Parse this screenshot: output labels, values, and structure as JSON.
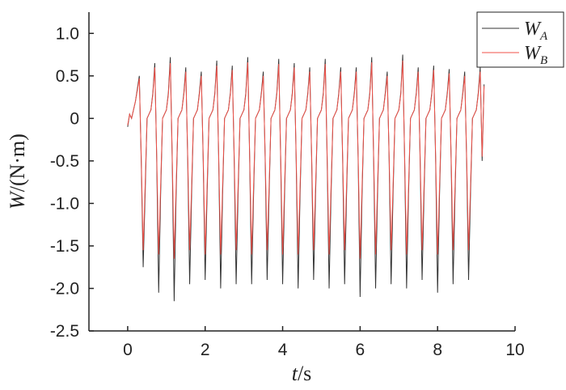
{
  "chart_data": {
    "type": "line",
    "x_label": "t/s",
    "y_label": "W/(N·m)",
    "xlim": [
      -1,
      10
    ],
    "xticks": [
      0,
      2,
      4,
      6,
      8,
      10
    ],
    "ylim": [
      -2.5,
      1.25
    ],
    "yticks": [
      {
        "value": 1,
        "label": "1.0"
      },
      0.5,
      0,
      -0.5,
      {
        "value": -1,
        "label": "-1.0"
      },
      -1.5,
      {
        "value": -2,
        "label": "-2.0"
      },
      -2.5
    ],
    "legend": "top-right",
    "x": [
      0,
      0.05,
      0.1,
      0.15,
      0.2,
      0.25,
      0.3,
      0.35,
      0.4,
      0.45,
      0.5,
      0.55,
      0.6,
      0.65,
      0.7,
      0.75,
      0.8,
      0.85,
      0.9,
      0.95,
      1,
      1.05,
      1.1,
      1.15,
      1.2,
      1.25,
      1.3,
      1.35,
      1.4,
      1.45,
      1.5,
      1.55,
      1.6,
      1.65,
      1.7,
      1.75,
      1.8,
      1.85,
      1.9,
      1.95,
      2,
      2.05,
      2.1,
      2.15,
      2.2,
      2.25,
      2.3,
      2.35,
      2.4,
      2.45,
      2.5,
      2.55,
      2.6,
      2.65,
      2.7,
      2.75,
      2.8,
      2.85,
      2.9,
      2.95,
      3,
      3.05,
      3.1,
      3.15,
      3.2,
      3.25,
      3.3,
      3.35,
      3.4,
      3.45,
      3.5,
      3.55,
      3.6,
      3.65,
      3.7,
      3.75,
      3.8,
      3.85,
      3.9,
      3.95,
      4,
      4.05,
      4.1,
      4.15,
      4.2,
      4.25,
      4.3,
      4.35,
      4.4,
      4.45,
      4.5,
      4.55,
      4.6,
      4.65,
      4.7,
      4.75,
      4.8,
      4.85,
      4.9,
      4.95,
      5,
      5.05,
      5.1,
      5.15,
      5.2,
      5.25,
      5.3,
      5.35,
      5.4,
      5.45,
      5.5,
      5.55,
      5.6,
      5.65,
      5.7,
      5.75,
      5.8,
      5.85,
      5.9,
      5.95,
      6,
      6.05,
      6.1,
      6.15,
      6.2,
      6.25,
      6.3,
      6.35,
      6.4,
      6.45,
      6.5,
      6.55,
      6.6,
      6.65,
      6.7,
      6.75,
      6.8,
      6.85,
      6.9,
      6.95,
      7,
      7.05,
      7.1,
      7.15,
      7.2,
      7.25,
      7.3,
      7.35,
      7.4,
      7.45,
      7.5,
      7.55,
      7.6,
      7.65,
      7.7,
      7.75,
      7.8,
      7.85,
      7.9,
      7.95,
      8,
      8.05,
      8.1,
      8.15,
      8.2,
      8.25,
      8.3,
      8.35,
      8.4,
      8.45,
      8.5,
      8.55,
      8.6,
      8.65,
      8.7,
      8.75,
      8.8,
      8.85,
      8.9,
      8.95,
      9,
      9.05,
      9.1,
      9.15,
      9.2
    ],
    "series": [
      {
        "name": "WA",
        "color": "#333333",
        "values": [
          -0.1,
          0.05,
          0,
          0.1,
          0.2,
          0.35,
          0.5,
          -0.5,
          -1.75,
          -0.9,
          0,
          0.05,
          0.1,
          0.3,
          0.65,
          -0.5,
          -2.05,
          -0.9,
          0,
          0.05,
          0.1,
          0.3,
          0.72,
          -0.5,
          -2.15,
          -0.9,
          0,
          0.05,
          0.1,
          0.3,
          0.6,
          -0.5,
          -1.95,
          -0.9,
          0,
          0.05,
          0.1,
          0.3,
          0.55,
          -0.5,
          -1.9,
          -0.9,
          0,
          0.05,
          0.1,
          0.3,
          0.68,
          -0.5,
          -2,
          -0.9,
          0,
          0.05,
          0.1,
          0.3,
          0.62,
          -0.5,
          -1.95,
          -0.9,
          0,
          0.05,
          0.1,
          0.3,
          0.72,
          -0.5,
          -1.95,
          -0.9,
          0,
          0.05,
          0.1,
          0.3,
          0.55,
          -0.5,
          -1.9,
          -0.9,
          0,
          0.05,
          0.1,
          0.3,
          0.7,
          -0.5,
          -1.95,
          -0.9,
          0,
          0.05,
          0.1,
          0.3,
          0.65,
          -0.5,
          -2,
          -0.9,
          0,
          0.05,
          0.1,
          0.3,
          0.6,
          -0.5,
          -1.9,
          -0.9,
          0,
          0.05,
          0.1,
          0.3,
          0.7,
          -0.5,
          -2,
          -0.9,
          0,
          0.05,
          0.1,
          0.3,
          0.6,
          -0.5,
          -1.95,
          -0.9,
          0,
          0.05,
          0.1,
          0.3,
          0.6,
          -0.5,
          -2.1,
          -0.9,
          0,
          0.05,
          0.1,
          0.3,
          0.72,
          -0.5,
          -2,
          -0.9,
          0,
          0.05,
          0.1,
          0.3,
          0.55,
          -0.5,
          -1.95,
          -0.9,
          0,
          0.05,
          0.1,
          0.3,
          0.75,
          -0.5,
          -2,
          -0.9,
          0,
          0.05,
          0.1,
          0.3,
          0.6,
          -0.5,
          -1.9,
          -0.9,
          0,
          0.05,
          0.1,
          0.3,
          0.62,
          -0.5,
          -2.05,
          -0.9,
          0,
          0.05,
          0.1,
          0.3,
          0.58,
          -0.5,
          -1.95,
          -0.9,
          0,
          0.05,
          0.1,
          0.3,
          0.55,
          -0.5,
          -1.9,
          -0.9,
          0,
          0.05,
          0.1,
          0.3,
          0.6,
          -0.5,
          0.4
        ]
      },
      {
        "name": "WB",
        "color": "#f0524a",
        "values": [
          -0.08,
          0.05,
          0,
          0.1,
          0.2,
          0.33,
          0.47,
          -0.45,
          -1.55,
          -0.8,
          0,
          0.05,
          0.1,
          0.28,
          0.6,
          -0.45,
          -1.6,
          -0.8,
          0,
          0.05,
          0.1,
          0.28,
          0.65,
          -0.45,
          -1.65,
          -0.8,
          0,
          0.05,
          0.1,
          0.28,
          0.55,
          -0.45,
          -1.55,
          -0.8,
          0,
          0.05,
          0.1,
          0.28,
          0.5,
          -0.45,
          -1.6,
          -0.8,
          0,
          0.05,
          0.1,
          0.28,
          0.62,
          -0.45,
          -1.6,
          -0.8,
          0,
          0.05,
          0.1,
          0.28,
          0.57,
          -0.45,
          -1.55,
          -0.8,
          0,
          0.05,
          0.1,
          0.28,
          0.66,
          -0.45,
          -1.6,
          -0.8,
          0,
          0.05,
          0.1,
          0.28,
          0.5,
          -0.45,
          -1.55,
          -0.8,
          0,
          0.05,
          0.1,
          0.28,
          0.64,
          -0.45,
          -1.6,
          -0.8,
          0,
          0.05,
          0.1,
          0.28,
          0.6,
          -0.45,
          -1.6,
          -0.8,
          0,
          0.05,
          0.1,
          0.28,
          0.55,
          -0.45,
          -1.55,
          -0.8,
          0,
          0.05,
          0.1,
          0.28,
          0.64,
          -0.45,
          -1.6,
          -0.8,
          0,
          0.05,
          0.1,
          0.28,
          0.55,
          -0.45,
          -1.55,
          -0.8,
          0,
          0.05,
          0.1,
          0.28,
          0.55,
          -0.45,
          -1.65,
          -0.8,
          0,
          0.05,
          0.1,
          0.28,
          0.66,
          -0.45,
          -1.6,
          -0.8,
          0,
          0.05,
          0.1,
          0.28,
          0.5,
          -0.45,
          -1.55,
          -0.8,
          0,
          0.05,
          0.1,
          0.28,
          0.68,
          -0.45,
          -1.6,
          -0.8,
          0,
          0.05,
          0.1,
          0.28,
          0.55,
          -0.45,
          -1.55,
          -0.8,
          0,
          0.05,
          0.1,
          0.28,
          0.57,
          -0.45,
          -1.6,
          -0.8,
          0,
          0.05,
          0.1,
          0.28,
          0.53,
          -0.45,
          -1.55,
          -0.8,
          0,
          0.05,
          0.1,
          0.28,
          0.5,
          -0.45,
          -1.55,
          -0.8,
          0,
          0.05,
          0.1,
          0.28,
          0.55,
          -0.45,
          0.38
        ]
      }
    ]
  }
}
